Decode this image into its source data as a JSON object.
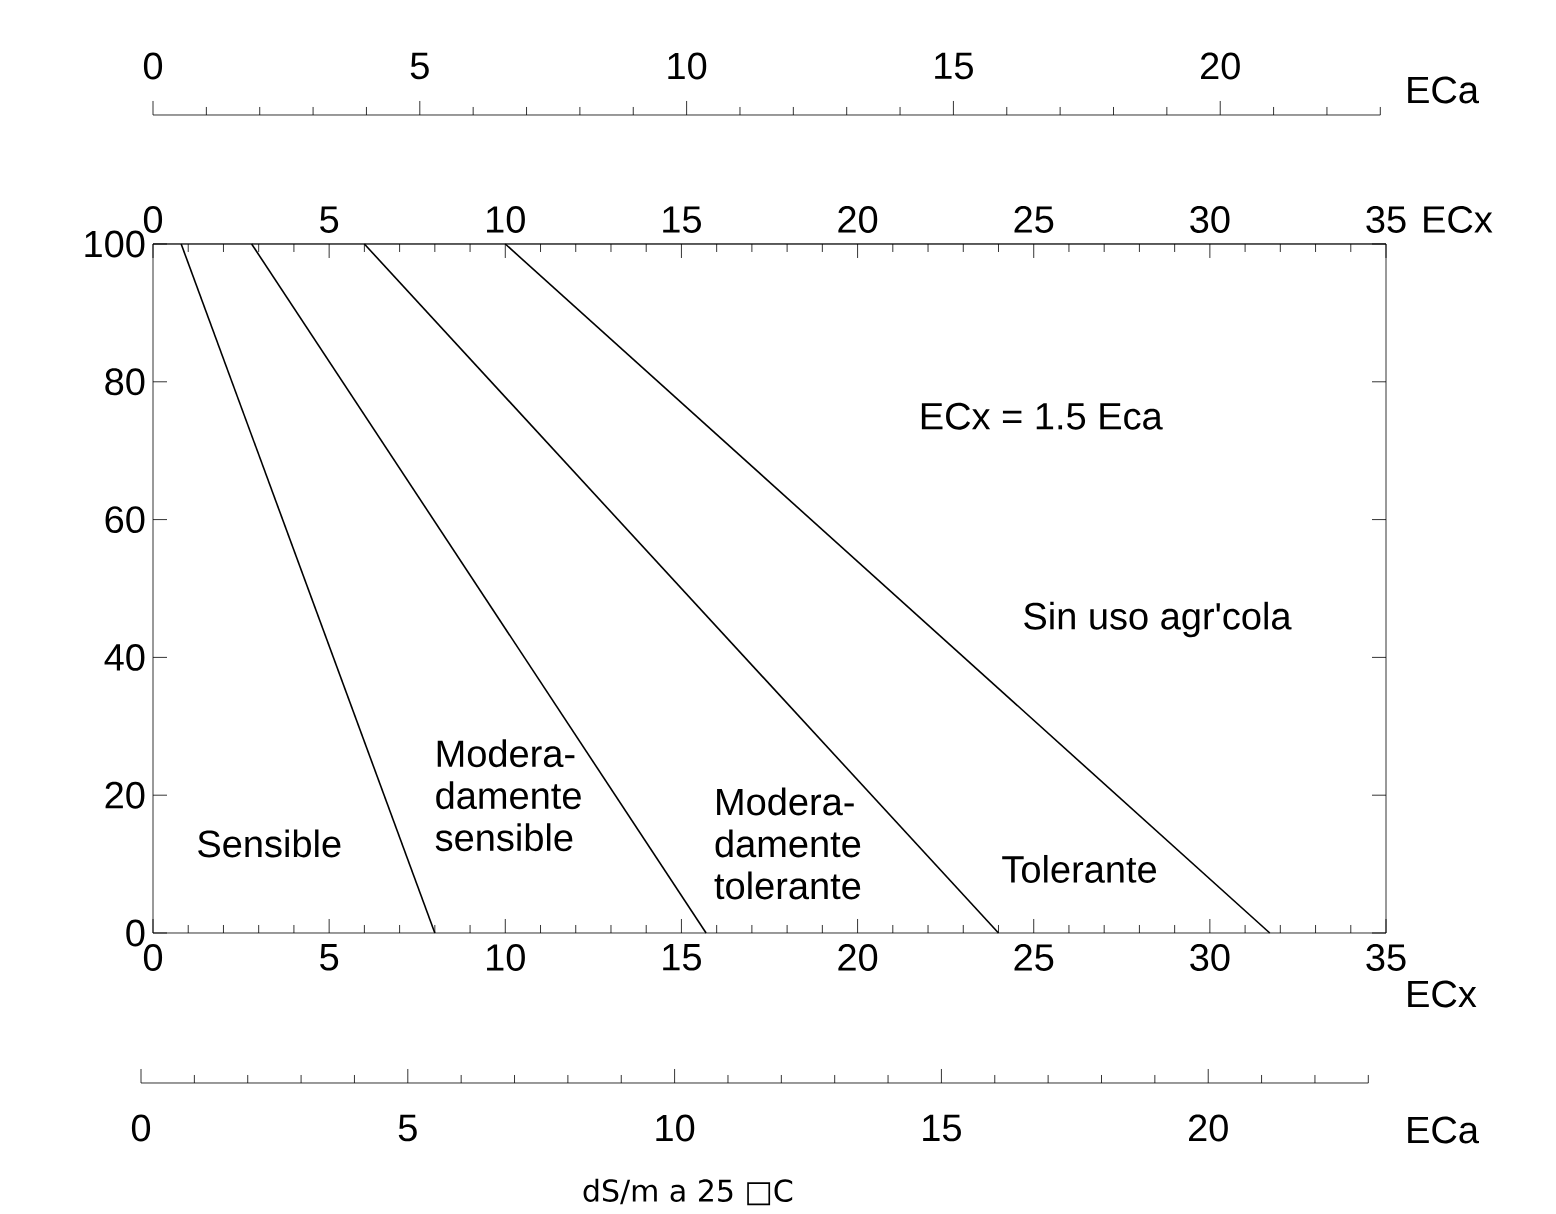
{
  "chart_data": {
    "type": "line",
    "xlabel": "ECx",
    "x2label": "ECx",
    "xlim": [
      0,
      35
    ],
    "xticks": [
      0,
      5,
      10,
      15,
      20,
      25,
      30,
      35
    ],
    "x2lim": [
      0,
      35
    ],
    "x2ticks": [
      0,
      5,
      10,
      15,
      20,
      25,
      30,
      35
    ],
    "ylim": [
      0,
      100
    ],
    "yticks": [
      0,
      20,
      40,
      60,
      80,
      100
    ],
    "line_style": "solid",
    "series": [
      {
        "color": "#000000",
        "x": [
          0.8,
          8
        ],
        "values": [
          100,
          0
        ]
      },
      {
        "color": "#000000",
        "x": [
          2.8,
          15.7
        ],
        "values": [
          100,
          0
        ]
      },
      {
        "color": "#000000",
        "x": [
          6,
          24
        ],
        "values": [
          100,
          0
        ]
      },
      {
        "color": "#000000",
        "x": [
          10,
          31.7
        ],
        "values": [
          100,
          0
        ]
      }
    ],
    "annotations": [
      "ECx = 1.5 Eca",
      "Sin uso agr'cola",
      "Sensible",
      "Modera-damente sensible",
      "Modera-damente tolerante",
      "Tolerante",
      "0",
      "5",
      "10",
      "15",
      "20",
      "ECa",
      "0",
      "5",
      "10",
      "15",
      "20",
      "ECa",
      "dS/m a 25 □C"
    ]
  }
}
